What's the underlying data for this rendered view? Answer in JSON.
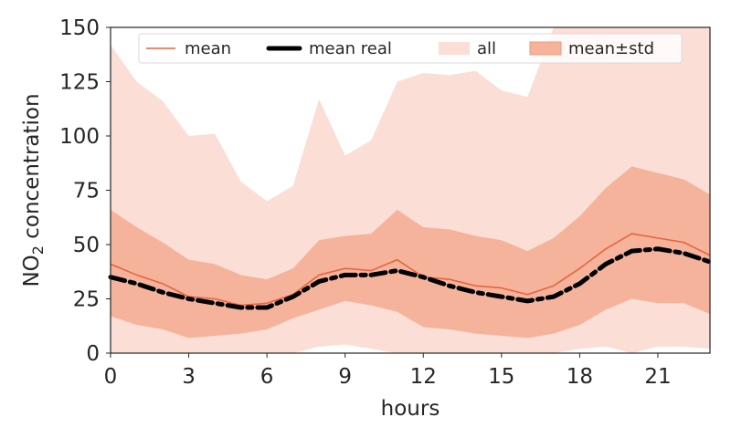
{
  "chart_data": {
    "type": "area",
    "xlabel": "hours",
    "ylabel_prefix": "NO",
    "ylabel_subscript": "2",
    "ylabel_suffix": " concentration",
    "xlim": [
      0,
      23
    ],
    "ylim": [
      0,
      150
    ],
    "xticks": [
      0,
      3,
      6,
      9,
      12,
      15,
      18,
      21
    ],
    "yticks": [
      0,
      25,
      50,
      75,
      100,
      125,
      150
    ],
    "grid": false,
    "legend_position": "top",
    "x": [
      0,
      1,
      2,
      3,
      4,
      5,
      6,
      7,
      8,
      9,
      10,
      11,
      12,
      13,
      14,
      15,
      16,
      17,
      18,
      19,
      20,
      21,
      22,
      23
    ],
    "series": [
      {
        "name": "mean",
        "kind": "line",
        "color": "#e8643c",
        "values": [
          41,
          36,
          32,
          26,
          25,
          22,
          23,
          27,
          36,
          39,
          38,
          43,
          35,
          34,
          31,
          30,
          27,
          31,
          39,
          48,
          55,
          53,
          51,
          45
        ]
      },
      {
        "name": "mean real",
        "kind": "dashed-line",
        "color": "#000000",
        "values": [
          35,
          32,
          28,
          25,
          23,
          21,
          21,
          26,
          33,
          36,
          36,
          38,
          35,
          31,
          28,
          26,
          24,
          26,
          32,
          41,
          47,
          48,
          46,
          42
        ]
      },
      {
        "name": "all",
        "kind": "band",
        "color": "#fbded5",
        "lower": [
          0,
          0,
          0,
          0,
          0,
          0,
          0,
          0,
          3,
          4,
          2,
          0,
          0,
          0,
          0,
          0,
          0,
          0,
          2,
          3,
          0,
          3,
          3,
          2
        ],
        "upper": [
          142,
          125,
          116,
          100,
          101,
          79,
          70,
          77,
          117,
          91,
          98,
          125,
          129,
          128,
          130,
          121,
          118,
          150,
          150,
          150,
          150,
          150,
          150,
          150
        ]
      },
      {
        "name": "mean±std",
        "kind": "band",
        "color": "#f5b39b",
        "lower": [
          17,
          13,
          11,
          7,
          8,
          9,
          11,
          16,
          20,
          24,
          22,
          19,
          12,
          11,
          9,
          8,
          7,
          9,
          13,
          20,
          25,
          23,
          23,
          18
        ],
        "upper": [
          66,
          58,
          51,
          43,
          41,
          36,
          34,
          39,
          52,
          54,
          55,
          66,
          58,
          57,
          54,
          52,
          47,
          53,
          63,
          76,
          86,
          83,
          80,
          73
        ]
      }
    ]
  }
}
